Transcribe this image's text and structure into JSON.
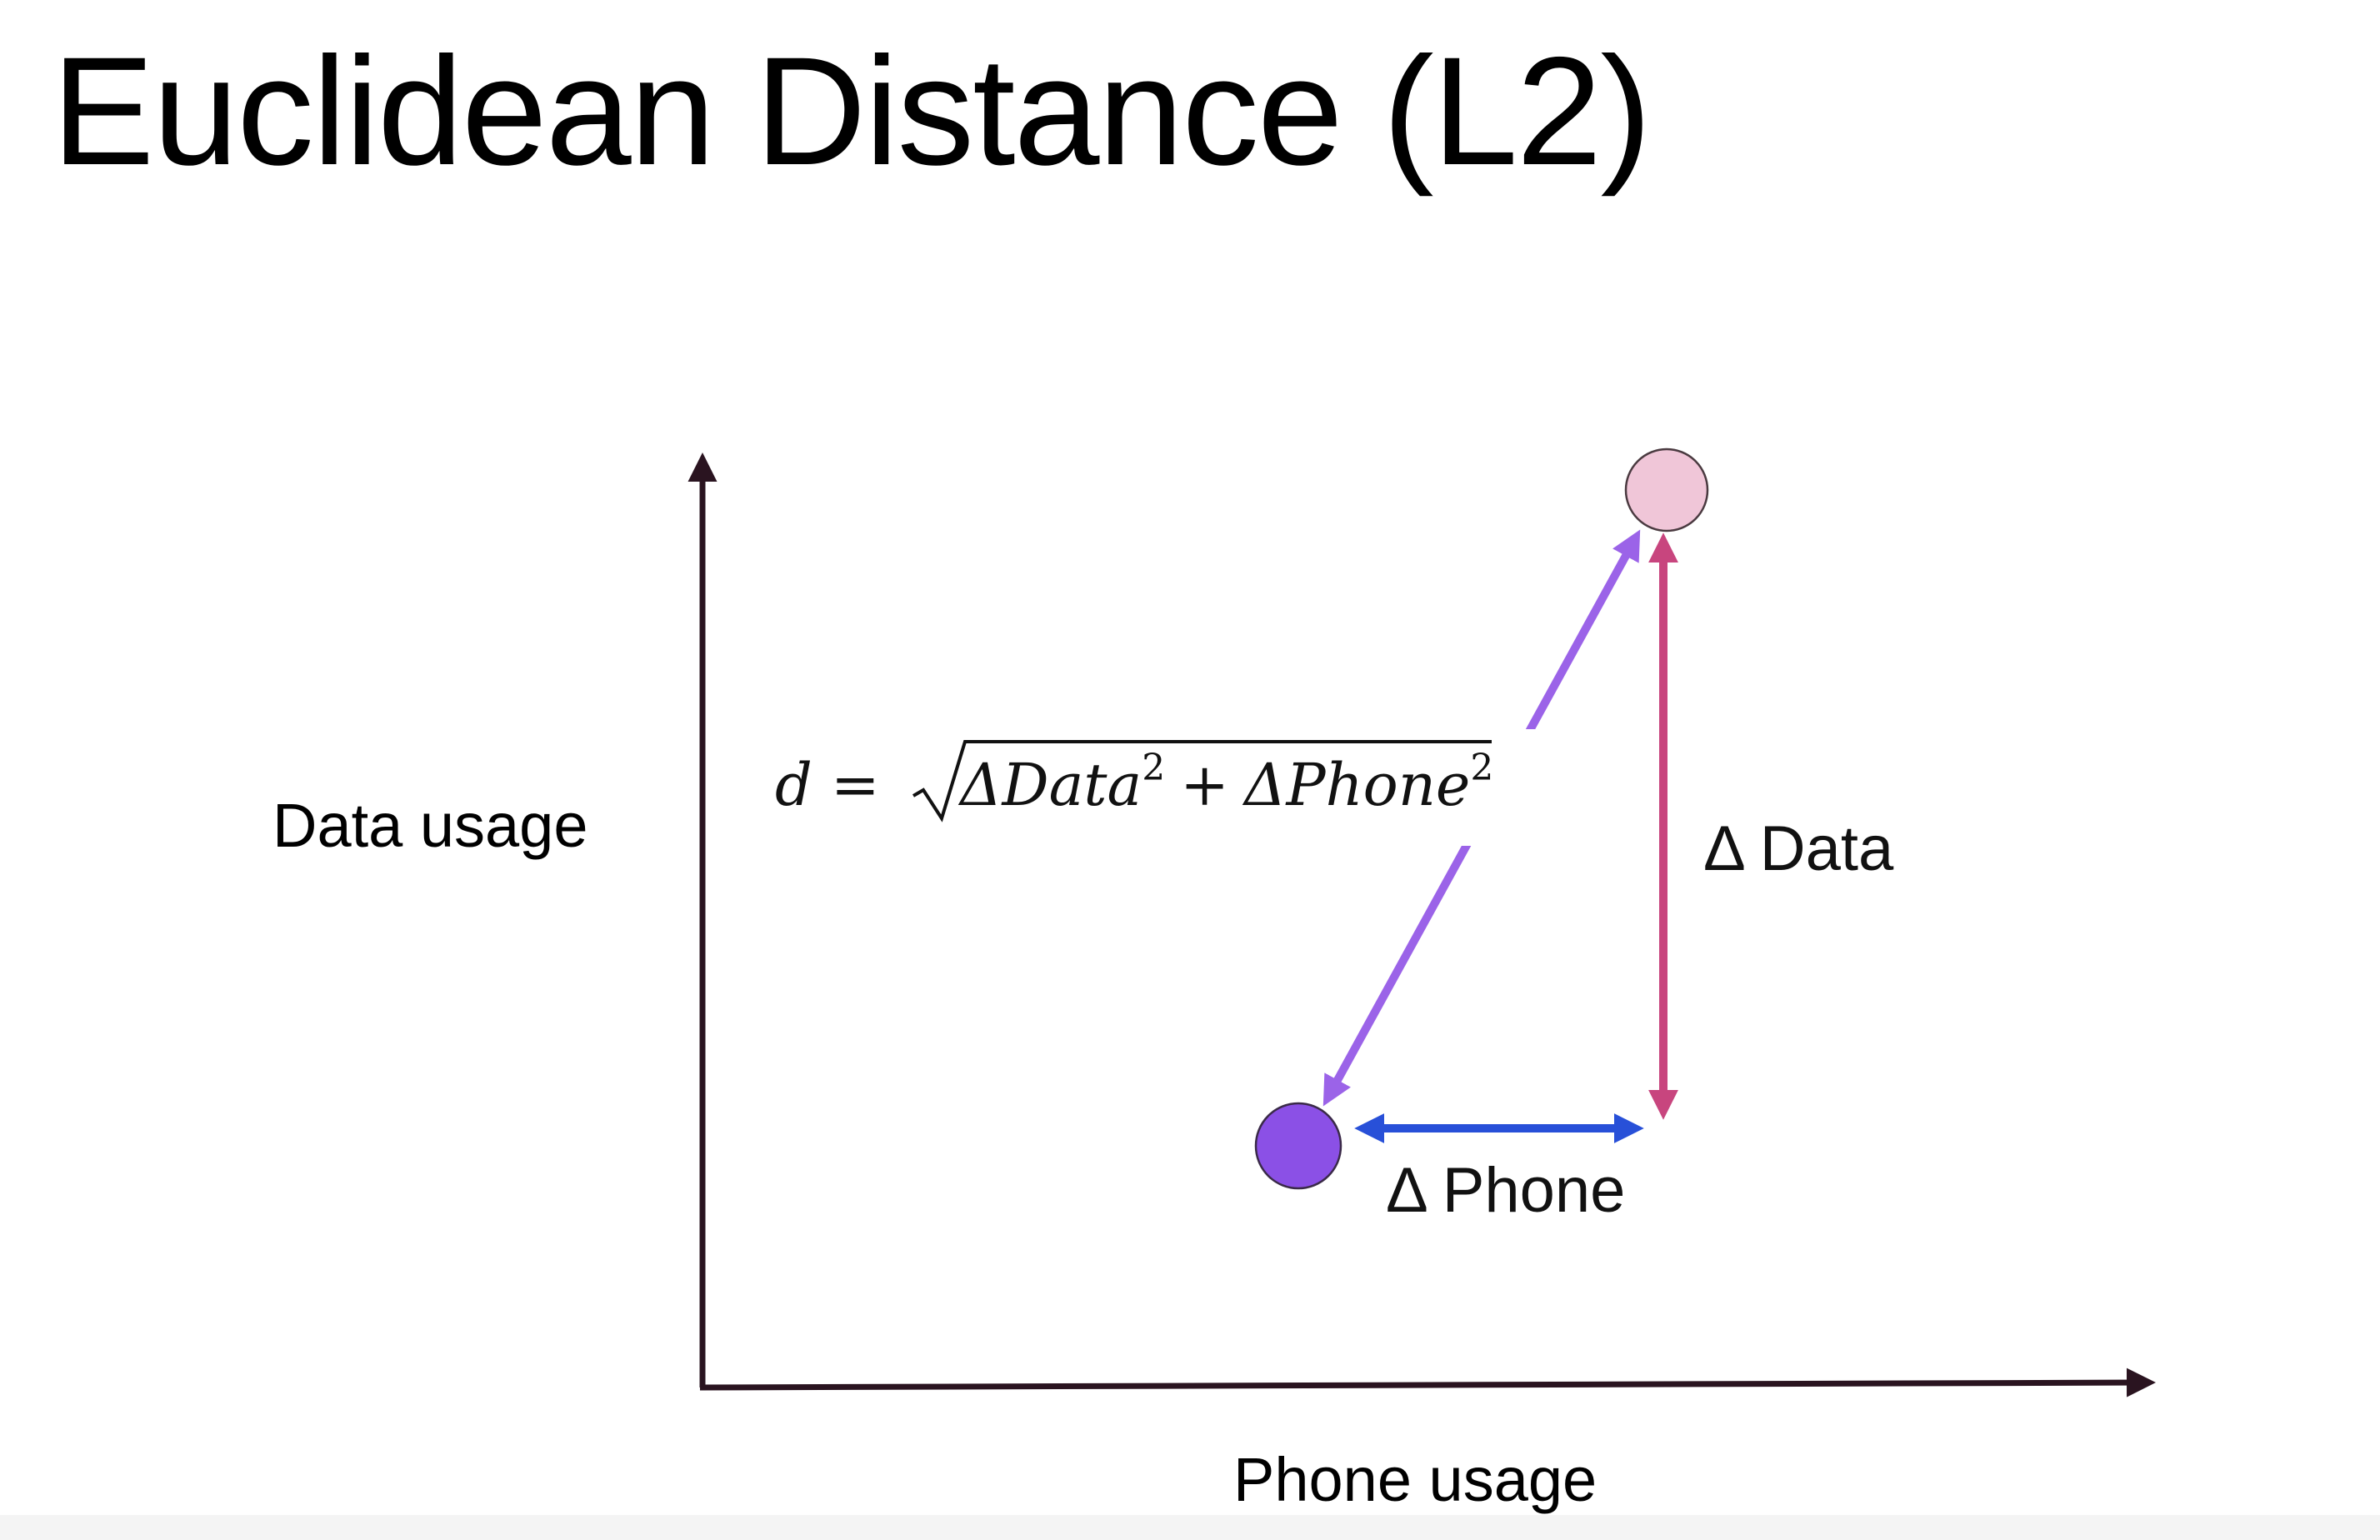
{
  "slide": {
    "title": "Euclidean Distance (L2)"
  },
  "diagram": {
    "y_axis_label": "Data usage",
    "x_axis_label": "Phone usage",
    "formula": {
      "lhs": "d =",
      "radicand_part1": "ΔData",
      "exponent1": "2",
      "plus": "+",
      "radicand_part2": "ΔPhone",
      "exponent2": "2"
    },
    "delta_data_label": "Δ Data",
    "delta_phone_label": "Δ Phone",
    "colors": {
      "axis": "#2a1420",
      "point_a_fill": "#8b50e6",
      "point_b_fill": "#f0c6d8",
      "distance_arrow": "#9b63e8",
      "data_arrow": "#c8457e",
      "phone_arrow": "#2850d8"
    }
  }
}
